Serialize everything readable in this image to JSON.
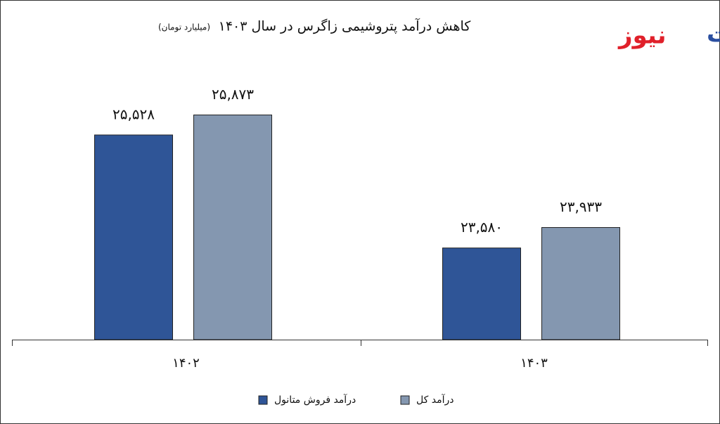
{
  "logo": {
    "blue": "تجارت",
    "red": "نیوز"
  },
  "chart_data": {
    "type": "bar",
    "title": "کاهش درآمد پتروشیمی زاگرس در سال ۱۴۰۳",
    "subtitle": "(میلیارد تومان)",
    "categories": [
      "۱۴۰۲",
      "۱۴۰۳"
    ],
    "series": [
      {
        "name": "درآمد فروش متانول",
        "color": "#2f5597",
        "values": [
          25528,
          23580
        ],
        "value_labels": [
          "۲۵,۵۲۸",
          "۲۳,۵۸۰"
        ]
      },
      {
        "name": "درآمد کل",
        "color": "#8497b0",
        "values": [
          25873,
          23933
        ],
        "value_labels": [
          "۲۵,۸۷۳",
          "۲۳,۹۳۳"
        ]
      }
    ],
    "ylim": [
      22000,
      26000
    ]
  }
}
